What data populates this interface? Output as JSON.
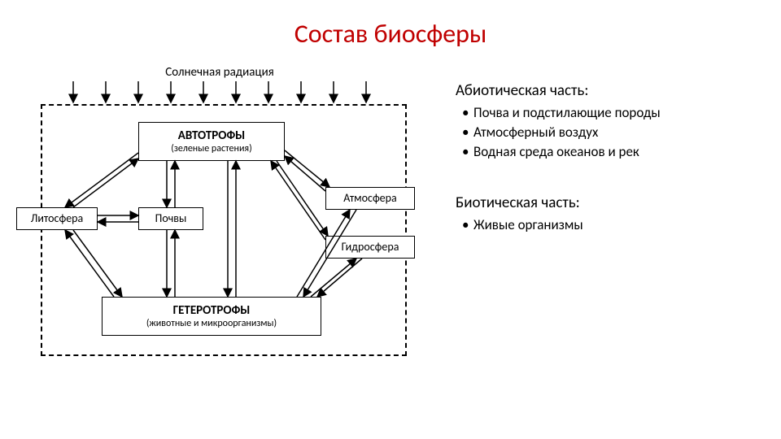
{
  "title": "Состав биосферы",
  "title_color": "#c00000",
  "diagram": {
    "type": "flowchart",
    "background_color": "#ffffff",
    "border_style": "dashed",
    "border_color": "#000000",
    "node_border_color": "#000000",
    "arrow_color": "#000000",
    "font_family": "Calibri",
    "solar_label": "Солнечная радиация",
    "nodes": {
      "autotrophs": {
        "main": "АВТОТРОФЫ",
        "sub": "(зеленые растения)"
      },
      "heterotrophs": {
        "main": "ГЕТЕРОТРОФЫ",
        "sub": "(животные и микроорганизмы)"
      },
      "lithosphere": "Литосфера",
      "soils": "Почвы",
      "atmosphere": "Атмосфера",
      "hydrosphere": "Гидросфера"
    },
    "solar_arrow_count": 10
  },
  "sections": {
    "abiotic": {
      "heading": "Абиотическая часть:",
      "items": [
        "Почва и подстилающие породы",
        "Атмосферный воздух",
        "Водная среда океанов и рек"
      ]
    },
    "biotic": {
      "heading": "Биотическая часть:",
      "items": [
        "Живые организмы"
      ]
    }
  },
  "text_color": "#000000"
}
